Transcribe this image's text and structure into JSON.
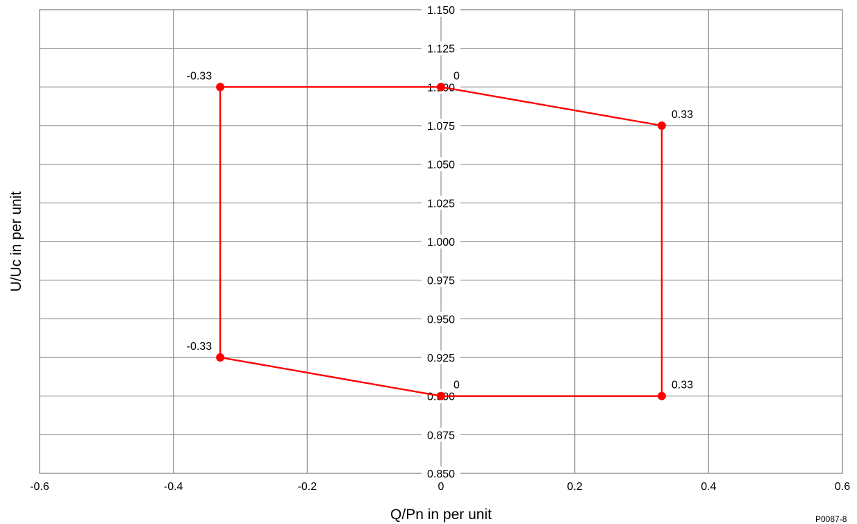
{
  "chart_data": {
    "type": "line",
    "xlabel": "Q/Pn in per unit",
    "ylabel": "U/Uc in per unit",
    "xlim": [
      -0.6,
      0.6
    ],
    "ylim": [
      0.85,
      1.15
    ],
    "x_ticks": [
      -0.6,
      -0.4,
      -0.2,
      0,
      0.2,
      0.4,
      0.6
    ],
    "x_tick_labels": [
      "-0.6",
      "-0.4",
      "-0.2",
      "0",
      "0.2",
      "0.4",
      "0.6"
    ],
    "y_ticks": [
      0.85,
      0.875,
      0.9,
      0.925,
      0.95,
      0.975,
      1.0,
      1.025,
      1.05,
      1.075,
      1.1,
      1.125,
      1.15
    ],
    "y_tick_labels": [
      "0.850",
      "0.875",
      "0.900",
      "0.925",
      "0.950",
      "0.975",
      "1.000",
      "1.025",
      "1.050",
      "1.075",
      "1.100",
      "1.125",
      "1.150"
    ],
    "grid": true,
    "series": [
      {
        "color": "#ff0000",
        "closed": true,
        "points": [
          {
            "x": -0.33,
            "y": 1.1,
            "label": "-0.33"
          },
          {
            "x": 0,
            "y": 1.1,
            "label": "0"
          },
          {
            "x": 0.33,
            "y": 1.075,
            "label": "0.33"
          },
          {
            "x": 0.33,
            "y": 0.9,
            "label": "0.33"
          },
          {
            "x": 0,
            "y": 0.9,
            "label": "0"
          },
          {
            "x": -0.33,
            "y": 0.925,
            "label": "-0.33"
          }
        ]
      }
    ]
  },
  "figure_id": "P0087-8"
}
